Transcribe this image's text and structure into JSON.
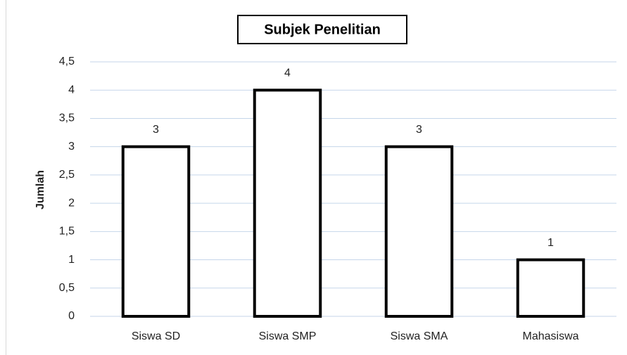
{
  "chart_data": {
    "type": "bar",
    "title": "Subjek Penelitian",
    "ylabel": "Jumlah",
    "categories": [
      "Siswa SD",
      "Siswa SMP",
      "Siswa SMA",
      "Mahasiswa"
    ],
    "values": [
      3,
      4,
      3,
      1
    ],
    "color": "#ffffff",
    "edgecolor": "#000000",
    "ylim": [
      0,
      4.5
    ],
    "yticks": [
      0,
      {
        "value": 0.5,
        "label": "0,5"
      },
      1,
      {
        "value": 1.5,
        "label": "1,5"
      },
      2,
      {
        "value": 2.5,
        "label": "2,5"
      },
      3,
      {
        "value": 3.5,
        "label": "3,5"
      },
      4,
      {
        "value": 4.5,
        "label": "4,5"
      }
    ],
    "grid": true
  }
}
